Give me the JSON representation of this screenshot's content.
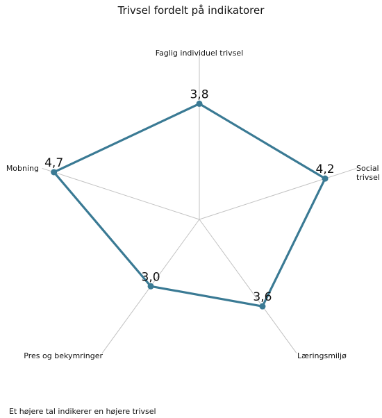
{
  "chart_data": {
    "type": "radar",
    "title": "Trivsel fordelt på indikatorer",
    "categories": [
      "Faglig individuel trivsel",
      "Social trivsel",
      "Læringsmiljø",
      "Pres og bekymringer",
      "Mobning"
    ],
    "series": [
      {
        "values": [
          3.8,
          4.2,
          3.6,
          3.0,
          4.7
        ]
      }
    ],
    "value_labels": [
      "3,8",
      "4,2",
      "3,6",
      "3,0",
      "4,7"
    ],
    "rlim": [
      1,
      5
    ],
    "line_color": "#3a7a94",
    "axis_color": "#c2c2c2",
    "grid": false,
    "legend": "none"
  },
  "footnote": "Et højere tal indikerer en højere trivsel"
}
